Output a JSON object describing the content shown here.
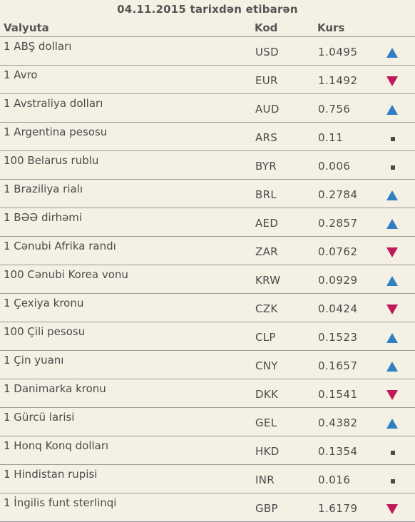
{
  "title": "04.11.2015 tarixdən etibarən",
  "headers": {
    "name": "Valyuta",
    "code": "Kod",
    "rate": "Kurs"
  },
  "colors": {
    "up": "#2f7fc2",
    "down": "#c0185a",
    "same": "#4a4a4a",
    "background": "#f4f1e4"
  },
  "rows": [
    {
      "name": "1 ABŞ dolları",
      "code": "USD",
      "rate": "1.0495",
      "trend": "up"
    },
    {
      "name": "1 Avro",
      "code": "EUR",
      "rate": "1.1492",
      "trend": "down"
    },
    {
      "name": "1 Avstraliya dolları",
      "code": "AUD",
      "rate": "0.756",
      "trend": "up"
    },
    {
      "name": "1 Argentina pesosu",
      "code": "ARS",
      "rate": "0.11",
      "trend": "same"
    },
    {
      "name": "100 Belarus rublu",
      "code": "BYR",
      "rate": "0.006",
      "trend": "same"
    },
    {
      "name": "1 Braziliya rialı",
      "code": "BRL",
      "rate": "0.2784",
      "trend": "up"
    },
    {
      "name": "1 BƏƏ dirhəmi",
      "code": "AED",
      "rate": "0.2857",
      "trend": "up"
    },
    {
      "name": "1 Cənubi Afrika randı",
      "code": "ZAR",
      "rate": "0.0762",
      "trend": "down"
    },
    {
      "name": "100 Cənubi Korea vonu",
      "code": "KRW",
      "rate": "0.0929",
      "trend": "up"
    },
    {
      "name": "1 Çexiya kronu",
      "code": "CZK",
      "rate": "0.0424",
      "trend": "down"
    },
    {
      "name": "100 Çili pesosu",
      "code": "CLP",
      "rate": "0.1523",
      "trend": "up"
    },
    {
      "name": "1 Çin yuanı",
      "code": "CNY",
      "rate": "0.1657",
      "trend": "up"
    },
    {
      "name": "1 Danimarka kronu",
      "code": "DKK",
      "rate": "0.1541",
      "trend": "down"
    },
    {
      "name": "1 Gürcü larisi",
      "code": "GEL",
      "rate": "0.4382",
      "trend": "up"
    },
    {
      "name": "1 Honq Konq dolları",
      "code": "HKD",
      "rate": "0.1354",
      "trend": "same"
    },
    {
      "name": "1 Hindistan rupisi",
      "code": "INR",
      "rate": "0.016",
      "trend": "same"
    },
    {
      "name": "1 İngilis funt sterlinqi",
      "code": "GBP",
      "rate": "1.6179",
      "trend": "down"
    }
  ]
}
